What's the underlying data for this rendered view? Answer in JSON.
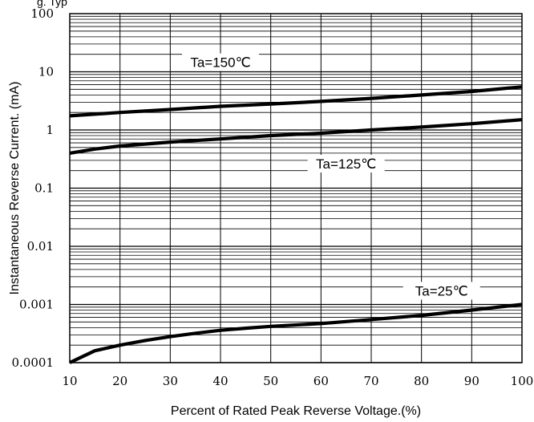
{
  "chart_data": {
    "type": "line",
    "title": "g. Typ",
    "xlabel": "Percent of Rated Peak Reverse Voltage.(%)",
    "ylabel": "Instantaneous Reverse Current. (mA)",
    "xlim": [
      10,
      100
    ],
    "ylim": [
      0.0001,
      100
    ],
    "y_scale": "log",
    "grid": true,
    "x_ticks": [
      10,
      20,
      30,
      40,
      50,
      60,
      70,
      80,
      90,
      100
    ],
    "x_tick_labels": [
      "10",
      "20",
      "30",
      "40",
      "50",
      "60",
      "70",
      "80",
      "90",
      "100"
    ],
    "y_ticks": [
      0.0001,
      0.001,
      0.01,
      0.1,
      1,
      10,
      100
    ],
    "y_tick_labels": [
      "0.0001",
      "0.001",
      "0.01",
      "0.1",
      "1",
      "10",
      "100"
    ],
    "series": [
      {
        "name": "Ta=150℃",
        "x": [
          10,
          20,
          30,
          40,
          50,
          60,
          70,
          80,
          90,
          100
        ],
        "y": [
          1.75,
          2.0,
          2.25,
          2.55,
          2.8,
          3.1,
          3.5,
          4.0,
          4.6,
          5.5
        ]
      },
      {
        "name": "Ta=125℃",
        "x": [
          10,
          15,
          20,
          30,
          40,
          50,
          60,
          70,
          80,
          90,
          100
        ],
        "y": [
          0.4,
          0.47,
          0.53,
          0.62,
          0.7,
          0.8,
          0.88,
          1.0,
          1.12,
          1.28,
          1.5
        ]
      },
      {
        "name": "Ta=25℃",
        "x": [
          10,
          15,
          20,
          25,
          30,
          35,
          40,
          45,
          50,
          60,
          70,
          80,
          90,
          100
        ],
        "y": [
          0.0001,
          0.00016,
          0.0002,
          0.00024,
          0.00028,
          0.00032,
          0.00036,
          0.00039,
          0.00042,
          0.00047,
          0.00055,
          0.00065,
          0.0008,
          0.001
        ]
      }
    ],
    "annotations": [
      {
        "text": "Ta=150℃",
        "series": 0,
        "x": 40
      },
      {
        "text": "Ta=125℃",
        "series": 1,
        "x": 65
      },
      {
        "text": "Ta=25℃",
        "series": 2,
        "x": 84
      }
    ]
  }
}
